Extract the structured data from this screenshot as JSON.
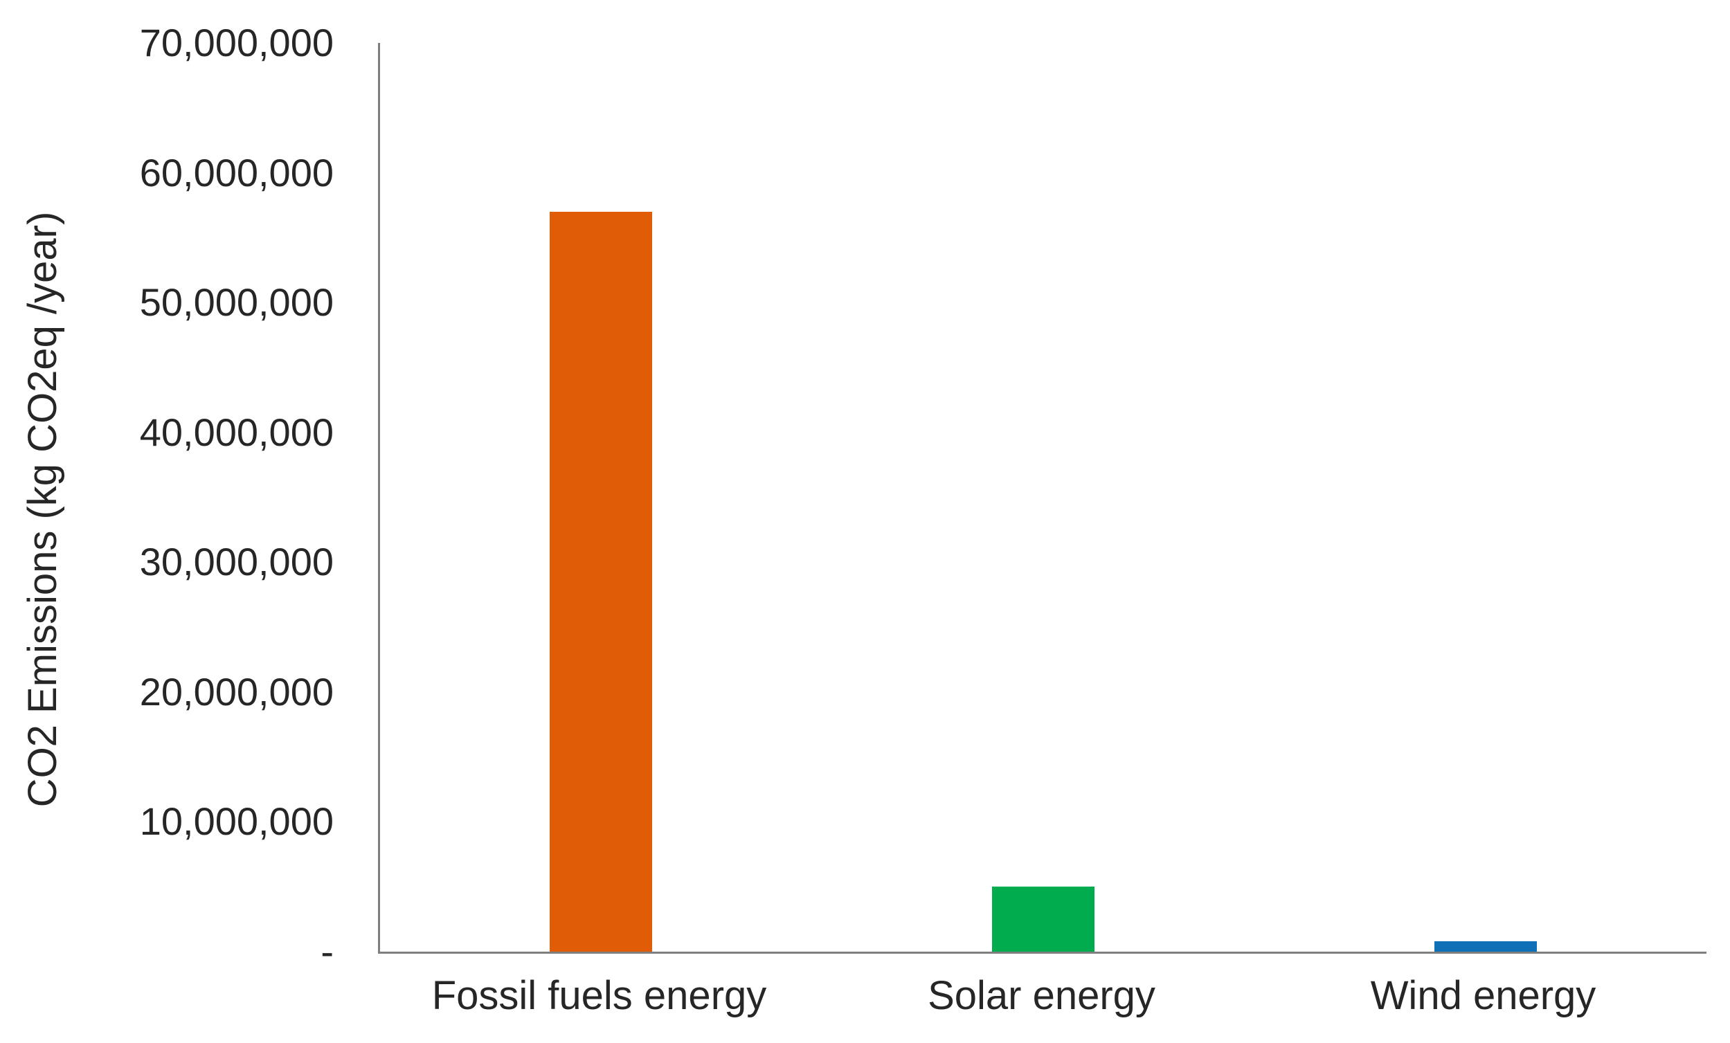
{
  "chart_data": {
    "type": "bar",
    "title": "",
    "categories": [
      "Fossil fuels energy",
      "Solar energy",
      "Wind energy"
    ],
    "values": [
      57000000,
      5000000,
      800000
    ],
    "bar_colors": [
      "#E05C06",
      "#00AC4E",
      "#0F70B7"
    ],
    "xlabel": "",
    "ylabel": "CO2 Emissions (kg CO2eq /year)",
    "ylim": [
      0,
      70000000
    ],
    "ytick_interval": 10000000,
    "ytick_labels": [
      "70,000,000",
      "60,000,000",
      "50,000,000",
      "40,000,000",
      "30,000,000",
      "20,000,000",
      "10,000,000",
      "-"
    ],
    "grid": false,
    "legend": "none",
    "axis_color": "#7F7F7F",
    "text_color": "#262626"
  }
}
